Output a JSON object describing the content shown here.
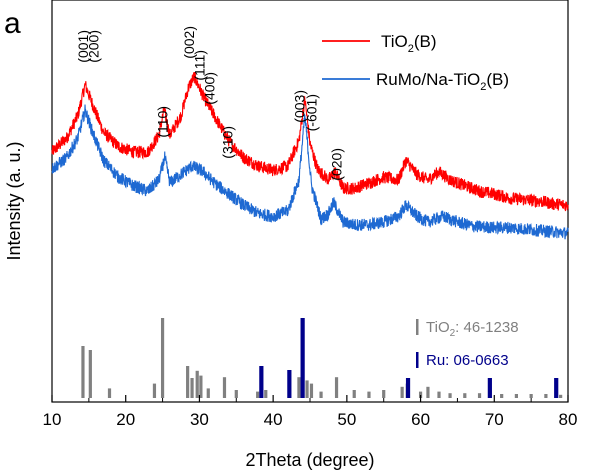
{
  "panel_label": "a",
  "chart_data": {
    "type": "line",
    "xlabel": "2Theta (degree)",
    "ylabel": "Intensity (a. u.)",
    "xlim": [
      10,
      80
    ],
    "xticks": [
      10,
      20,
      30,
      40,
      50,
      60,
      70,
      80
    ],
    "yticks_shown": false,
    "grid": false,
    "legend_position": "top-right",
    "series": [
      {
        "name": "TiO2(B)",
        "name_base": "TiO",
        "name_sub": "2",
        "name_suffix": "(B)",
        "color": "#ff0000",
        "x": [
          10,
          12,
          13.5,
          14.5,
          15.5,
          17,
          19,
          21,
          23,
          24.5,
          25.2,
          26,
          27.5,
          28.5,
          29.3,
          30.5,
          32,
          34,
          36,
          38,
          40,
          42,
          43.5,
          44.3,
          45,
          46,
          47.5,
          48.4,
          49.5,
          51,
          53,
          55,
          57,
          58,
          59.5,
          61,
          62.5,
          64,
          66,
          68,
          70,
          72,
          74,
          76,
          78,
          80
        ],
        "y": [
          0.4,
          0.5,
          0.66,
          0.88,
          0.74,
          0.54,
          0.44,
          0.4,
          0.4,
          0.52,
          0.7,
          0.52,
          0.66,
          0.86,
          0.94,
          0.8,
          0.66,
          0.48,
          0.36,
          0.3,
          0.27,
          0.3,
          0.48,
          0.78,
          0.46,
          0.28,
          0.2,
          0.26,
          0.14,
          0.14,
          0.18,
          0.22,
          0.2,
          0.34,
          0.24,
          0.2,
          0.26,
          0.2,
          0.16,
          0.12,
          0.1,
          0.07,
          0.06,
          0.05,
          0.03,
          0.02
        ]
      },
      {
        "name": "RuMo/Na-TiO2(B)",
        "name_base": "RuMo/Na-TiO",
        "name_sub": "2",
        "name_suffix": "(B)",
        "color": "#1e69d2",
        "x": [
          10,
          12,
          13.5,
          14.5,
          15.5,
          17,
          19,
          21,
          23,
          24.5,
          25.3,
          26,
          27.5,
          29,
          30.5,
          32,
          34,
          36,
          38,
          40,
          42,
          43.5,
          44.3,
          45.2,
          46.5,
          47.5,
          48.2,
          49.5,
          51,
          53,
          55,
          57,
          58,
          59.5,
          61,
          63,
          65,
          67,
          70,
          72,
          74,
          76,
          78,
          80
        ],
        "y": [
          0.28,
          0.36,
          0.5,
          0.7,
          0.54,
          0.34,
          0.22,
          0.16,
          0.12,
          0.2,
          0.36,
          0.18,
          0.24,
          0.3,
          0.26,
          0.18,
          0.1,
          0.02,
          -0.04,
          -0.06,
          -0.02,
          0.2,
          0.66,
          0.16,
          -0.08,
          -0.04,
          0.04,
          -0.1,
          -0.12,
          -0.12,
          -0.1,
          -0.06,
          0.02,
          -0.06,
          -0.1,
          -0.06,
          -0.1,
          -0.13,
          -0.14,
          -0.14,
          -0.15,
          -0.16,
          -0.17,
          -0.18
        ]
      }
    ],
    "peak_labels": [
      {
        "text": "(001)",
        "x": 14.2
      },
      {
        "text": "(200)",
        "x": 15.6
      },
      {
        "text": "(110)",
        "x": 25.0
      },
      {
        "text": "(002)",
        "x": 28.6
      },
      {
        "text": "(111)",
        "x": 30.0
      },
      {
        "text": "(400)",
        "x": 31.4
      },
      {
        "text": "(310)",
        "x": 33.8
      },
      {
        "text": "(003)",
        "x": 43.6
      },
      {
        "text": "(-601)",
        "x": 45.2
      },
      {
        "text": "(020)",
        "x": 48.6
      }
    ],
    "reference_patterns": [
      {
        "label_base": "TiO",
        "label_sub": "2",
        "label_suffix": ": 46-1238",
        "color": "#808080",
        "peaks": [
          {
            "x": 14.2,
            "h": 0.65
          },
          {
            "x": 15.2,
            "h": 0.6
          },
          {
            "x": 17.8,
            "h": 0.12
          },
          {
            "x": 23.9,
            "h": 0.18
          },
          {
            "x": 25.0,
            "h": 1.0
          },
          {
            "x": 28.4,
            "h": 0.4
          },
          {
            "x": 29.0,
            "h": 0.25
          },
          {
            "x": 29.7,
            "h": 0.34
          },
          {
            "x": 30.2,
            "h": 0.28
          },
          {
            "x": 31.2,
            "h": 0.12
          },
          {
            "x": 33.4,
            "h": 0.26
          },
          {
            "x": 35.0,
            "h": 0.1
          },
          {
            "x": 37.9,
            "h": 0.08
          },
          {
            "x": 39.0,
            "h": 0.1
          },
          {
            "x": 43.5,
            "h": 0.26
          },
          {
            "x": 44.6,
            "h": 0.22
          },
          {
            "x": 45.2,
            "h": 0.18
          },
          {
            "x": 46.5,
            "h": 0.08
          },
          {
            "x": 48.6,
            "h": 0.26
          },
          {
            "x": 51.0,
            "h": 0.1
          },
          {
            "x": 53.0,
            "h": 0.08
          },
          {
            "x": 55.0,
            "h": 0.1
          },
          {
            "x": 57.5,
            "h": 0.14
          },
          {
            "x": 58.2,
            "h": 0.18
          },
          {
            "x": 60.0,
            "h": 0.08
          },
          {
            "x": 61.0,
            "h": 0.14
          },
          {
            "x": 62.5,
            "h": 0.08
          },
          {
            "x": 64.0,
            "h": 0.06
          },
          {
            "x": 66.0,
            "h": 0.06
          },
          {
            "x": 68.0,
            "h": 0.06
          },
          {
            "x": 71.0,
            "h": 0.05
          },
          {
            "x": 73.0,
            "h": 0.05
          },
          {
            "x": 75.0,
            "h": 0.05
          },
          {
            "x": 77.0,
            "h": 0.05
          },
          {
            "x": 79.0,
            "h": 0.04
          }
        ]
      },
      {
        "label_base": "Ru: 06-0663",
        "label_sub": "",
        "label_suffix": "",
        "color": "#00008b",
        "peaks": [
          {
            "x": 38.4,
            "h": 0.4
          },
          {
            "x": 42.2,
            "h": 0.35
          },
          {
            "x": 44.0,
            "h": 1.0
          },
          {
            "x": 58.3,
            "h": 0.25
          },
          {
            "x": 69.4,
            "h": 0.25
          },
          {
            "x": 78.4,
            "h": 0.25
          }
        ]
      }
    ]
  }
}
